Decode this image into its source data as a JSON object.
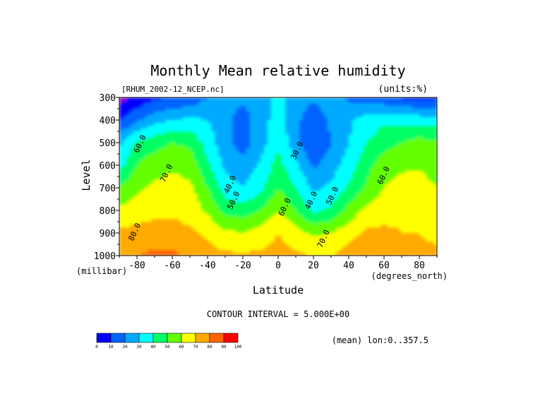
{
  "chart_data": {
    "type": "heatmap",
    "subtype": "filled contour (latitude-pressure cross section)",
    "title": "Monthly Mean relative humidity",
    "source_label": "[RHUM_2002-12_NCEP.nc]",
    "units_label": "(units:%)",
    "xlabel": "Latitude",
    "x_unit_label": "(degrees_north)",
    "ylabel": "Level",
    "y_unit_label": "(millibar)",
    "xlim": [
      -90,
      90
    ],
    "ylim": [
      300,
      1000
    ],
    "y_inverted": true,
    "x_ticks": [
      "-80",
      "-60",
      "-40",
      "-20",
      "0",
      "20",
      "40",
      "60",
      "80"
    ],
    "x_tick_values": [
      -80,
      -60,
      -40,
      -20,
      0,
      20,
      40,
      60,
      80
    ],
    "y_ticks": [
      "300",
      "400",
      "500",
      "600",
      "700",
      "800",
      "900",
      "1000"
    ],
    "y_tick_values": [
      300,
      400,
      500,
      600,
      700,
      800,
      900,
      1000
    ],
    "contour_interval_text": "CONTOUR INTERVAL = 5.000E+00",
    "mean_label": "(mean) lon:0..357.5",
    "contour_labels": [
      {
        "text": "60.0",
        "lat": -77,
        "lev": 510
      },
      {
        "text": "70.0",
        "lat": -62,
        "lev": 640
      },
      {
        "text": "80.0",
        "lat": -80,
        "lev": 900
      },
      {
        "text": "40.0",
        "lat": -26,
        "lev": 690
      },
      {
        "text": "50.0",
        "lat": -24,
        "lev": 760
      },
      {
        "text": "30.0",
        "lat": 12,
        "lev": 540
      },
      {
        "text": "40.0",
        "lat": 20,
        "lev": 760
      },
      {
        "text": "50.0",
        "lat": 32,
        "lev": 740
      },
      {
        "text": "60.0",
        "lat": 5,
        "lev": 790
      },
      {
        "text": "70.0",
        "lat": 27,
        "lev": 930
      },
      {
        "text": "60.0",
        "lat": 61,
        "lev": 650
      }
    ],
    "fields": {
      "lat": [
        -90,
        -80,
        -70,
        -60,
        -50,
        -40,
        -30,
        -20,
        -10,
        0,
        10,
        20,
        30,
        40,
        50,
        60,
        70,
        80,
        90
      ],
      "levels": [
        300,
        400,
        500,
        600,
        700,
        800,
        900,
        1000
      ],
      "rh": [
        [
          7,
          12,
          18,
          20,
          22,
          30,
          34,
          32,
          36,
          43,
          36,
          32,
          36,
          28,
          25,
          22,
          18,
          18,
          18
        ],
        [
          18,
          28,
          36,
          40,
          42,
          40,
          33,
          25,
          35,
          45,
          33,
          22,
          32,
          38,
          44,
          48,
          46,
          45,
          45
        ],
        [
          38,
          52,
          56,
          60,
          58,
          46,
          33,
          25,
          36,
          48,
          33,
          20,
          30,
          40,
          50,
          56,
          60,
          64,
          62
        ],
        [
          46,
          60,
          66,
          68,
          66,
          52,
          38,
          33,
          42,
          54,
          42,
          28,
          35,
          45,
          56,
          66,
          68,
          68,
          64
        ],
        [
          62,
          68,
          72,
          74,
          72,
          60,
          45,
          40,
          48,
          60,
          50,
          38,
          42,
          52,
          62,
          70,
          74,
          76,
          70
        ],
        [
          72,
          74,
          78,
          78,
          76,
          68,
          57,
          55,
          60,
          70,
          60,
          48,
          52,
          64,
          72,
          76,
          78,
          78,
          75
        ],
        [
          82,
          84,
          84,
          84,
          82,
          78,
          72,
          70,
          74,
          80,
          74,
          68,
          70,
          76,
          82,
          82,
          80,
          80,
          78
        ],
        [
          88,
          90,
          92,
          92,
          88,
          84,
          82,
          82,
          82,
          84,
          82,
          80,
          80,
          84,
          88,
          90,
          86,
          82,
          82
        ]
      ]
    },
    "colorbar": {
      "tick_labels": [
        "0",
        "10",
        "20",
        "30",
        "40",
        "50",
        "60",
        "70",
        "80",
        "90",
        "100"
      ],
      "bounds": [
        0,
        10,
        20,
        30,
        40,
        50,
        60,
        70,
        80,
        90,
        100
      ],
      "colors": [
        "#a000c8",
        "#0000ff",
        "#0064ff",
        "#00aaff",
        "#00ffff",
        "#00ff64",
        "#64ff00",
        "#ffff00",
        "#ffaa00",
        "#ff6400",
        "#ff0000"
      ]
    }
  }
}
